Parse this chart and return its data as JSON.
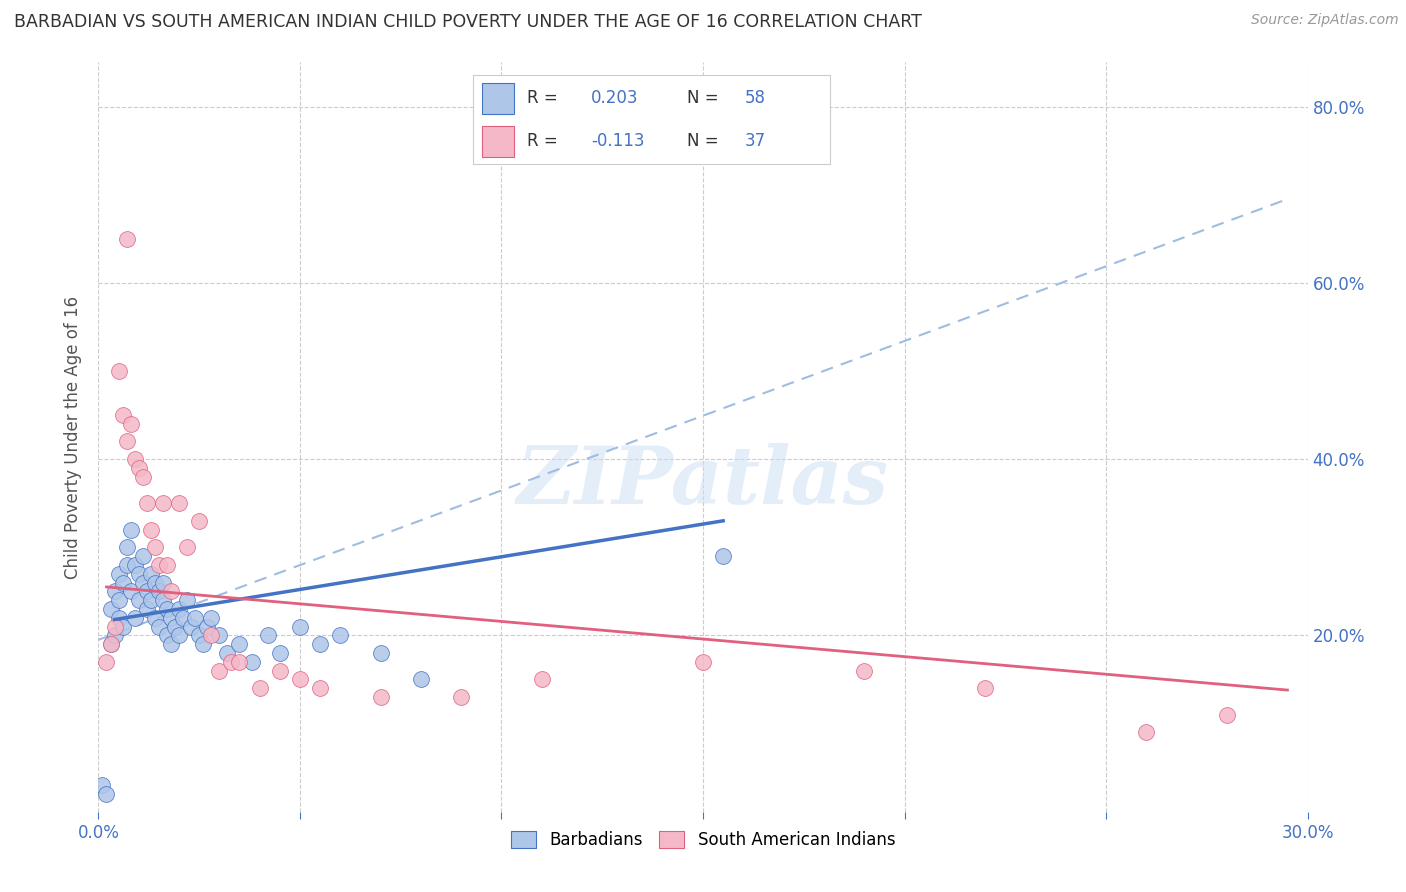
{
  "title": "BARBADIAN VS SOUTH AMERICAN INDIAN CHILD POVERTY UNDER THE AGE OF 16 CORRELATION CHART",
  "source": "Source: ZipAtlas.com",
  "ylabel": "Child Poverty Under the Age of 16",
  "xlim": [
    0.0,
    0.3
  ],
  "ylim": [
    0.0,
    0.85
  ],
  "x_ticks": [
    0.0,
    0.05,
    0.1,
    0.15,
    0.2,
    0.25,
    0.3
  ],
  "x_tick_labels": [
    "0.0%",
    "",
    "",
    "",
    "",
    "",
    "30.0%"
  ],
  "y_ticks": [
    0.0,
    0.2,
    0.4,
    0.6,
    0.8
  ],
  "y_tick_labels": [
    "",
    "20.0%",
    "40.0%",
    "60.0%",
    "80.0%"
  ],
  "barbadian_R": 0.203,
  "barbadian_N": 58,
  "sa_indian_R": -0.113,
  "sa_indian_N": 37,
  "barbadian_color": "#aec6e8",
  "sa_indian_color": "#f4b8c8",
  "barbadian_line_color": "#4472c4",
  "sa_indian_line_color": "#e0607e",
  "dashed_line_color": "#a0bce0",
  "watermark": "ZIPatlas",
  "background_color": "#ffffff",
  "grid_color": "#cccccc",
  "right_axis_color": "#4472c4",
  "barbadian_x": [
    0.001,
    0.002,
    0.003,
    0.003,
    0.004,
    0.004,
    0.005,
    0.005,
    0.005,
    0.006,
    0.006,
    0.007,
    0.007,
    0.008,
    0.008,
    0.009,
    0.009,
    0.01,
    0.01,
    0.011,
    0.011,
    0.012,
    0.012,
    0.013,
    0.013,
    0.014,
    0.014,
    0.015,
    0.015,
    0.016,
    0.016,
    0.017,
    0.017,
    0.018,
    0.018,
    0.019,
    0.02,
    0.02,
    0.021,
    0.022,
    0.023,
    0.024,
    0.025,
    0.026,
    0.027,
    0.028,
    0.03,
    0.032,
    0.035,
    0.038,
    0.042,
    0.045,
    0.05,
    0.055,
    0.06,
    0.07,
    0.08,
    0.155
  ],
  "barbadian_y": [
    0.03,
    0.02,
    0.23,
    0.19,
    0.25,
    0.2,
    0.22,
    0.27,
    0.24,
    0.21,
    0.26,
    0.3,
    0.28,
    0.32,
    0.25,
    0.28,
    0.22,
    0.24,
    0.27,
    0.26,
    0.29,
    0.25,
    0.23,
    0.27,
    0.24,
    0.26,
    0.22,
    0.25,
    0.21,
    0.24,
    0.26,
    0.23,
    0.2,
    0.22,
    0.19,
    0.21,
    0.23,
    0.2,
    0.22,
    0.24,
    0.21,
    0.22,
    0.2,
    0.19,
    0.21,
    0.22,
    0.2,
    0.18,
    0.19,
    0.17,
    0.2,
    0.18,
    0.21,
    0.19,
    0.2,
    0.18,
    0.15,
    0.29
  ],
  "sa_indian_x": [
    0.002,
    0.003,
    0.004,
    0.005,
    0.006,
    0.007,
    0.007,
    0.008,
    0.009,
    0.01,
    0.011,
    0.012,
    0.013,
    0.014,
    0.015,
    0.016,
    0.017,
    0.018,
    0.02,
    0.022,
    0.025,
    0.028,
    0.03,
    0.033,
    0.035,
    0.04,
    0.045,
    0.05,
    0.055,
    0.07,
    0.09,
    0.11,
    0.15,
    0.19,
    0.22,
    0.26,
    0.28
  ],
  "sa_indian_y": [
    0.17,
    0.19,
    0.21,
    0.5,
    0.45,
    0.65,
    0.42,
    0.44,
    0.4,
    0.39,
    0.38,
    0.35,
    0.32,
    0.3,
    0.28,
    0.35,
    0.28,
    0.25,
    0.35,
    0.3,
    0.33,
    0.2,
    0.16,
    0.17,
    0.17,
    0.14,
    0.16,
    0.15,
    0.14,
    0.13,
    0.13,
    0.15,
    0.17,
    0.16,
    0.14,
    0.09,
    0.11
  ],
  "barb_trend_x": [
    0.004,
    0.155
  ],
  "barb_trend_y": [
    0.218,
    0.33
  ],
  "sa_trend_x": [
    0.002,
    0.295
  ],
  "sa_trend_y": [
    0.255,
    0.138
  ],
  "dash_trend_x": [
    0.0,
    0.295
  ],
  "dash_trend_y": [
    0.195,
    0.695
  ]
}
